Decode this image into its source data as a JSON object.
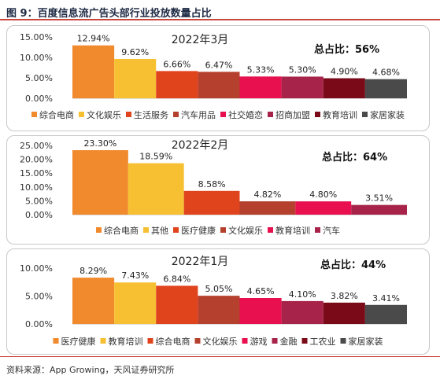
{
  "header": {
    "title": "图 9：百度信息流广告头部行业投放数量占比"
  },
  "footer": {
    "source": "资料来源：App Growing，天风证券研究所"
  },
  "chart_data": [
    {
      "type": "bar",
      "title": "2022年3月",
      "annotation": "总占比：56%",
      "yticks": [
        "0.00%",
        "5.00%",
        "10.00%",
        "15.00%"
      ],
      "ylim": [
        0,
        15
      ],
      "categories": [
        "综合电商",
        "文化娱乐",
        "生活服务",
        "汽车用品",
        "社交婚恋",
        "招商加盟",
        "教育培训",
        "家居家装"
      ],
      "values": [
        12.94,
        9.62,
        6.66,
        6.47,
        5.33,
        5.3,
        4.9,
        4.68
      ],
      "labels": [
        "12.94%",
        "9.62%",
        "6.66%",
        "6.47%",
        "5.33%",
        "5.30%",
        "4.90%",
        "4.68%"
      ],
      "colors": [
        "#f08a2c",
        "#f7c033",
        "#e0441d",
        "#b6402e",
        "#e8104f",
        "#a8234a",
        "#7a0a18",
        "#4a4a4a"
      ],
      "legend": "bottom"
    },
    {
      "type": "bar",
      "title": "2022年2月",
      "annotation": "总占比：64%",
      "yticks": [
        "0.00%",
        "5.00%",
        "10.00%",
        "15.00%",
        "20.00%",
        "25.00%"
      ],
      "ylim": [
        0,
        25
      ],
      "categories": [
        "综合电商",
        "其他",
        "医疗健康",
        "文化娱乐",
        "教育培训",
        "汽车"
      ],
      "values": [
        23.3,
        18.59,
        8.58,
        4.82,
        4.8,
        3.51
      ],
      "labels": [
        "23.30%",
        "18.59%",
        "8.58%",
        "4.82%",
        "4.80%",
        "3.51%"
      ],
      "colors": [
        "#f08a2c",
        "#f7c033",
        "#e0441d",
        "#b6402e",
        "#e8104f",
        "#a8234a"
      ],
      "legend": "bottom"
    },
    {
      "type": "bar",
      "title": "2022年1月",
      "annotation": "总占比：44%",
      "yticks": [
        "0.00%",
        "5.00%",
        "10.00%"
      ],
      "ylim": [
        0,
        10
      ],
      "categories": [
        "医疗健康",
        "教育培训",
        "综合电商",
        "文化娱乐",
        "游戏",
        "金融",
        "工农业",
        "家居家装"
      ],
      "values": [
        8.29,
        7.43,
        6.84,
        5.05,
        4.65,
        4.1,
        3.82,
        3.41
      ],
      "labels": [
        "8.29%",
        "7.43%",
        "6.84%",
        "5.05%",
        "4.65%",
        "4.10%",
        "3.82%",
        "3.41%"
      ],
      "colors": [
        "#f08a2c",
        "#f7c033",
        "#e0441d",
        "#b6402e",
        "#e8104f",
        "#a8234a",
        "#7a0a18",
        "#4a4a4a"
      ],
      "legend": "bottom"
    }
  ]
}
